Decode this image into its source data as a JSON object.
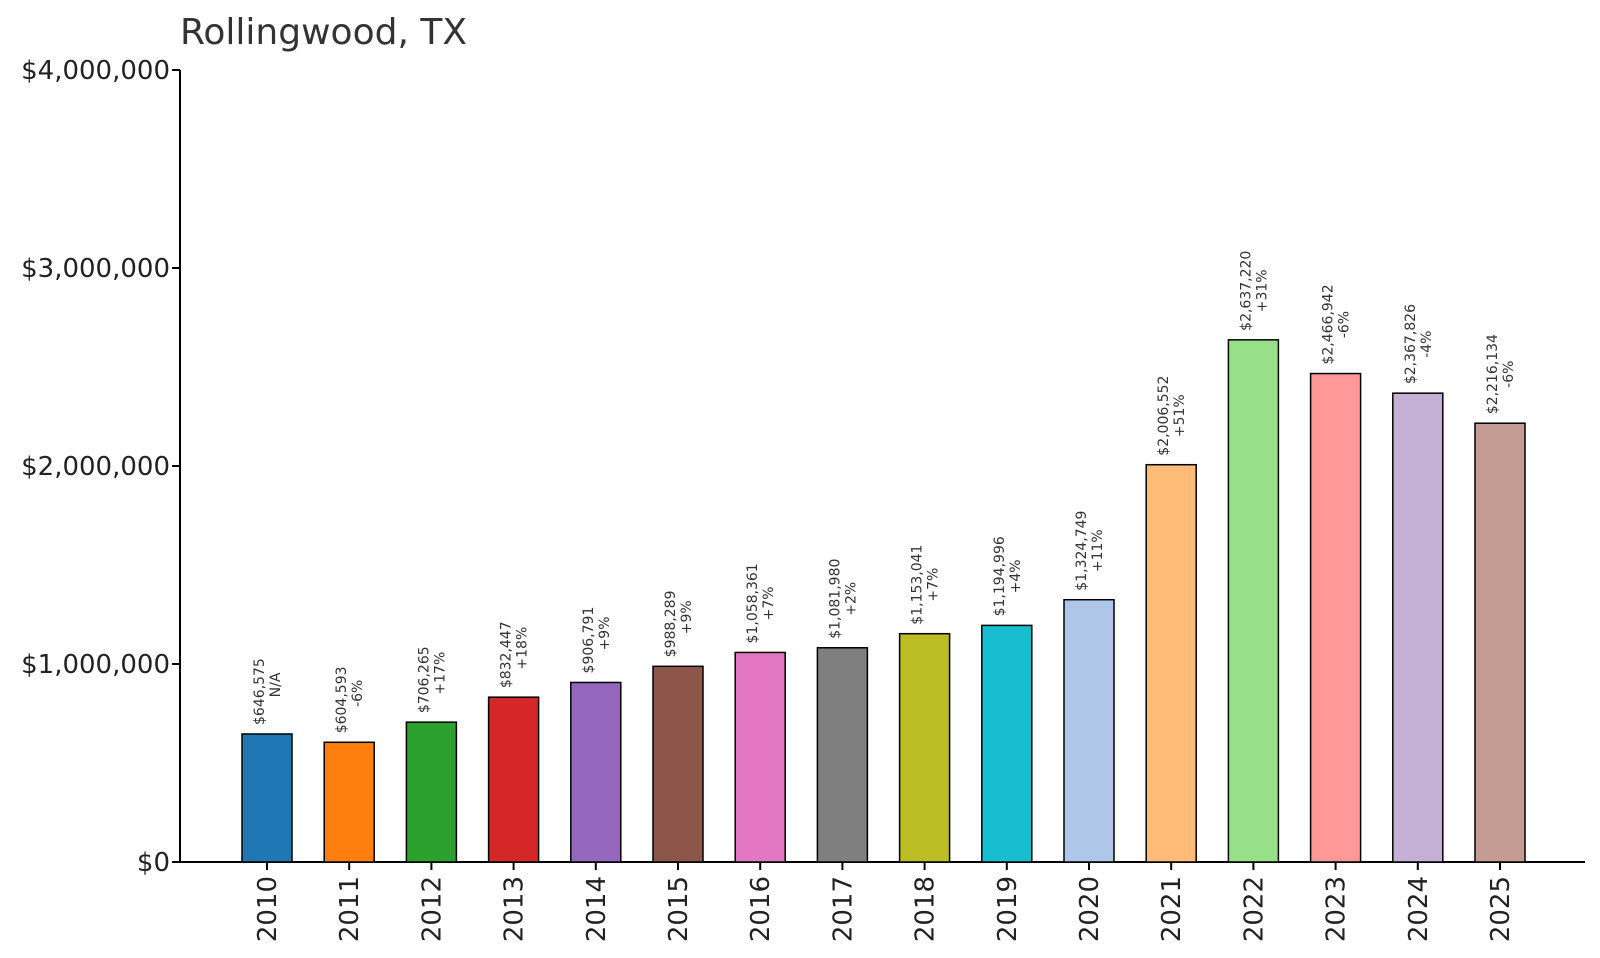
{
  "chart_data": {
    "type": "bar",
    "title": "Rollingwood, TX",
    "xlabel": "",
    "ylabel": "",
    "ylim": [
      0,
      4000000
    ],
    "grid": false,
    "legend": "none",
    "y_ticks": [
      {
        "value": 0,
        "label": "$0"
      },
      {
        "value": 1000000,
        "label": "$1,000,000"
      },
      {
        "value": 2000000,
        "label": "$2,000,000"
      },
      {
        "value": 3000000,
        "label": "$3,000,000"
      },
      {
        "value": 4000000,
        "label": "$4,000,000"
      }
    ],
    "categories": [
      "2010",
      "2011",
      "2012",
      "2013",
      "2014",
      "2015",
      "2016",
      "2017",
      "2018",
      "2019",
      "2020",
      "2021",
      "2022",
      "2023",
      "2024",
      "2025"
    ],
    "values": [
      646575,
      604593,
      706265,
      832447,
      906791,
      988289,
      1058361,
      1081980,
      1153041,
      1194996,
      1324749,
      2006552,
      2637220,
      2466942,
      2367826,
      2216134
    ],
    "value_labels": [
      "$646,575",
      "$604,593",
      "$706,265",
      "$832,447",
      "$906,791",
      "$988,289",
      "$1,058,361",
      "$1,081,980",
      "$1,153,041",
      "$1,194,996",
      "$1,324,749",
      "$2,006,552",
      "$2,637,220",
      "$2,466,942",
      "$2,367,826",
      "$2,216,134"
    ],
    "change_labels": [
      "N/A",
      "-6%",
      "+17%",
      "+18%",
      "+9%",
      "+9%",
      "+7%",
      "+2%",
      "+7%",
      "+4%",
      "+11%",
      "+51%",
      "+31%",
      "-6%",
      "-4%",
      "-6%"
    ],
    "colors": [
      "#1f77b4",
      "#ff7f0e",
      "#2ca02c",
      "#d62728",
      "#9467bd",
      "#8c564b",
      "#e377c2",
      "#7f7f7f",
      "#bcbd22",
      "#17becf",
      "#aec7e8",
      "#ffbb78",
      "#98df8a",
      "#ff9896",
      "#c5b0d5",
      "#c49c94"
    ]
  }
}
